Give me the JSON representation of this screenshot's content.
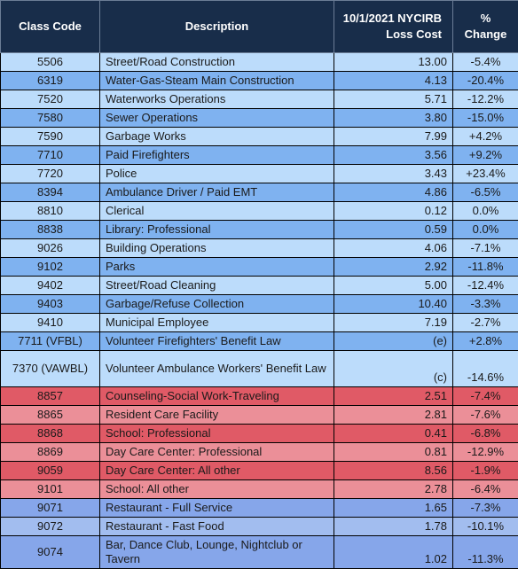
{
  "headers": {
    "class_code": "Class Code",
    "description": "Description",
    "loss_cost_line1": "10/1/2021 NYCIRB",
    "loss_cost_line2": "Loss Cost",
    "change_line1": "%",
    "change_line2": "Change"
  },
  "rows": [
    {
      "code": "5506",
      "desc": "Street/Road Construction",
      "cost": "13.00",
      "chg": "-5.4%"
    },
    {
      "code": "6319",
      "desc": "Water-Gas-Steam Main Construction",
      "cost": "4.13",
      "chg": "-20.4%"
    },
    {
      "code": "7520",
      "desc": "Waterworks Operations",
      "cost": "5.71",
      "chg": "-12.2%"
    },
    {
      "code": "7580",
      "desc": "Sewer Operations",
      "cost": "3.80",
      "chg": "-15.0%"
    },
    {
      "code": "7590",
      "desc": "Garbage Works",
      "cost": "7.99",
      "chg": "+4.2%"
    },
    {
      "code": "7710",
      "desc": "Paid Firefighters",
      "cost": "3.56",
      "chg": "+9.2%"
    },
    {
      "code": "7720",
      "desc": "Police",
      "cost": "3.43",
      "chg": "+23.4%"
    },
    {
      "code": "8394",
      "desc": "Ambulance Driver / Paid EMT",
      "cost": "4.86",
      "chg": "-6.5%"
    },
    {
      "code": "8810",
      "desc": "Clerical",
      "cost": "0.12",
      "chg": "0.0%"
    },
    {
      "code": "8838",
      "desc": "Library: Professional",
      "cost": "0.59",
      "chg": "0.0%"
    },
    {
      "code": "9026",
      "desc": "Building Operations",
      "cost": "4.06",
      "chg": "-7.1%"
    },
    {
      "code": "9102",
      "desc": "Parks",
      "cost": "2.92",
      "chg": "-11.8%"
    },
    {
      "code": "9402",
      "desc": "Street/Road Cleaning",
      "cost": "5.00",
      "chg": "-12.4%"
    },
    {
      "code": "9403",
      "desc": "Garbage/Refuse Collection",
      "cost": "10.40",
      "chg": "-3.3%"
    },
    {
      "code": "9410",
      "desc": "Municipal Employee",
      "cost": "7.19",
      "chg": "-2.7%"
    },
    {
      "code": "7711 (VFBL)",
      "desc": "Volunteer Firefighters' Benefit Law",
      "cost": "(e)",
      "chg": "+2.8%"
    },
    {
      "code": "7370 (VAWBL)",
      "desc": "Volunteer Ambulance Workers' Benefit Law",
      "cost": "(c)",
      "chg": "-14.6%"
    },
    {
      "code": "8857",
      "desc": "Counseling-Social Work-Traveling",
      "cost": "2.51",
      "chg": "-7.4%"
    },
    {
      "code": "8865",
      "desc": "Resident Care Facility",
      "cost": "2.81",
      "chg": "-7.6%"
    },
    {
      "code": "8868",
      "desc": "School: Professional",
      "cost": "0.41",
      "chg": "-6.8%"
    },
    {
      "code": "8869",
      "desc": "Day Care Center: Professional",
      "cost": "0.81",
      "chg": "-12.9%"
    },
    {
      "code": "9059",
      "desc": "Day Care Center: All other",
      "cost": "8.56",
      "chg": "-1.9%"
    },
    {
      "code": "9101",
      "desc": "School: All other",
      "cost": "2.78",
      "chg": "-6.4%"
    },
    {
      "code": "9071",
      "desc": "Restaurant - Full Service",
      "cost": "1.65",
      "chg": "-7.3%"
    },
    {
      "code": "9072",
      "desc": "Restaurant - Fast Food",
      "cost": "1.78",
      "chg": "-10.1%"
    },
    {
      "code": "9074",
      "desc": "Bar, Dance Club, Lounge, Nightclub or Tavern",
      "cost": "1.02",
      "chg": "-11.3%"
    }
  ],
  "colors": {
    "header_bg": "#182d4a",
    "light_blue": "#bcdcfb",
    "blue": "#7fb2f0",
    "red": "#e05a66",
    "pink": "#eb8f98",
    "periwinkle": "#a2bdef",
    "periwinkle_dark": "#86a6ea"
  }
}
